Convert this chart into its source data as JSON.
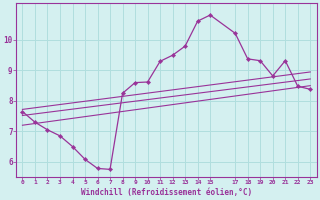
{
  "xlabel": "Windchill (Refroidissement éolien,°C)",
  "background_color": "#d4f0f0",
  "grid_color": "#b0dede",
  "line_color": "#993399",
  "axis_color": "#993399",
  "xlim": [
    -0.5,
    23.5
  ],
  "ylim": [
    5.5,
    11.2
  ],
  "xtick_values": [
    0,
    1,
    2,
    3,
    4,
    5,
    6,
    7,
    8,
    9,
    10,
    11,
    12,
    13,
    14,
    15,
    17,
    18,
    19,
    20,
    21,
    22,
    23
  ],
  "ytick_values": [
    6,
    7,
    8,
    9,
    10
  ],
  "curve1_x": [
    0,
    1,
    2,
    3,
    4,
    5,
    6,
    7,
    8,
    9,
    10,
    11,
    12,
    13,
    14,
    15,
    17,
    18,
    19,
    20,
    21,
    22,
    23
  ],
  "curve1_y": [
    7.65,
    7.3,
    7.05,
    6.85,
    6.5,
    6.08,
    5.78,
    5.75,
    8.25,
    8.6,
    8.62,
    9.3,
    9.5,
    9.8,
    10.62,
    10.82,
    10.22,
    9.38,
    9.32,
    8.82,
    9.32,
    8.48,
    8.38
  ],
  "line1_x": [
    0,
    23
  ],
  "line1_y": [
    7.2,
    8.5
  ],
  "line2_x": [
    0,
    23
  ],
  "line2_y": [
    7.52,
    8.72
  ],
  "line3_x": [
    0,
    23
  ],
  "line3_y": [
    7.72,
    8.95
  ]
}
